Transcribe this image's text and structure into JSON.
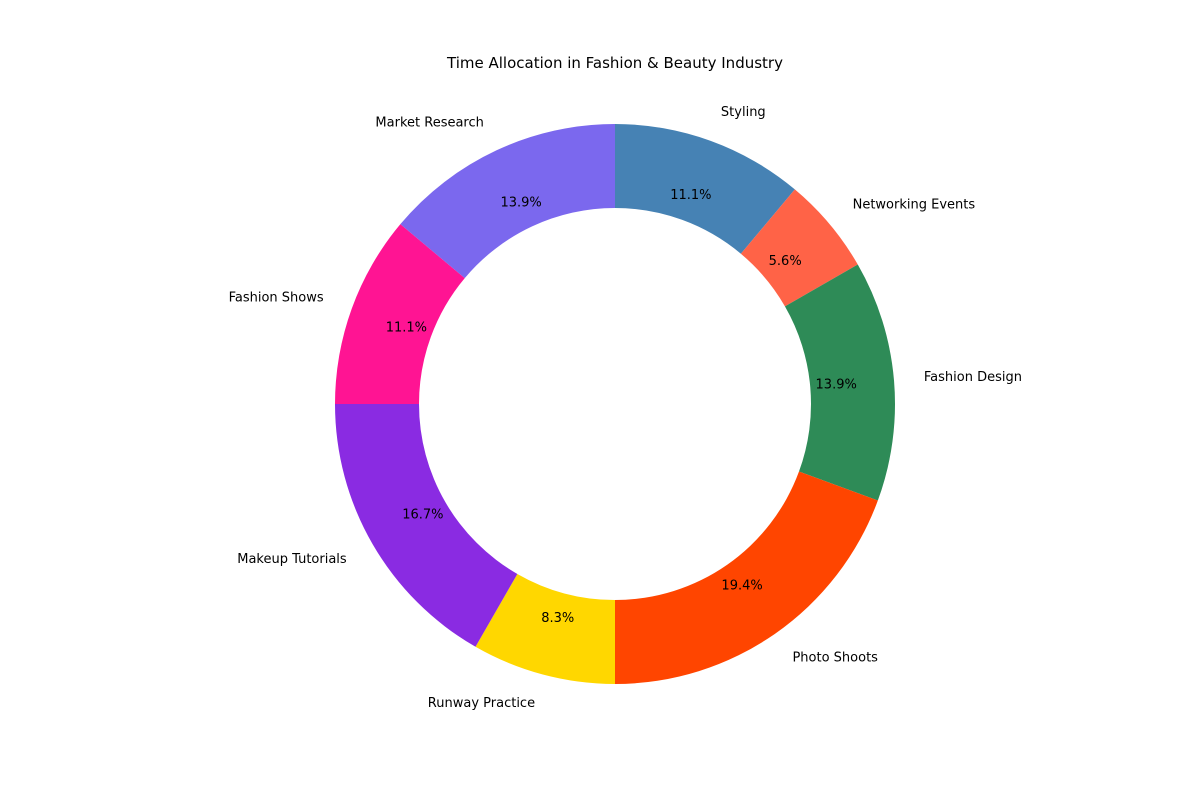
{
  "chart_data": {
    "type": "pie",
    "variant": "donut",
    "title": "Time Allocation in Fashion & Beauty Industry",
    "start_angle_deg": 90,
    "direction": "clockwise",
    "legend": "none",
    "grid": false,
    "slices": [
      {
        "label": "Styling",
        "value": 11.1,
        "pct_label": "11.1%",
        "color": "#4682B4"
      },
      {
        "label": "Networking Events",
        "value": 5.6,
        "pct_label": "5.6%",
        "color": "#FF6347"
      },
      {
        "label": "Fashion Design",
        "value": 13.9,
        "pct_label": "13.9%",
        "color": "#2E8B57"
      },
      {
        "label": "Photo Shoots",
        "value": 19.4,
        "pct_label": "19.4%",
        "color": "#FF4500"
      },
      {
        "label": "Runway Practice",
        "value": 8.3,
        "pct_label": "8.3%",
        "color": "#FFD700"
      },
      {
        "label": "Makeup Tutorials",
        "value": 16.7,
        "pct_label": "16.7%",
        "color": "#8A2BE2"
      },
      {
        "label": "Fashion Shows",
        "value": 11.1,
        "pct_label": "11.1%",
        "color": "#FF1493"
      },
      {
        "label": "Market Research",
        "value": 13.9,
        "pct_label": "13.9%",
        "color": "#7B68EE"
      }
    ]
  }
}
